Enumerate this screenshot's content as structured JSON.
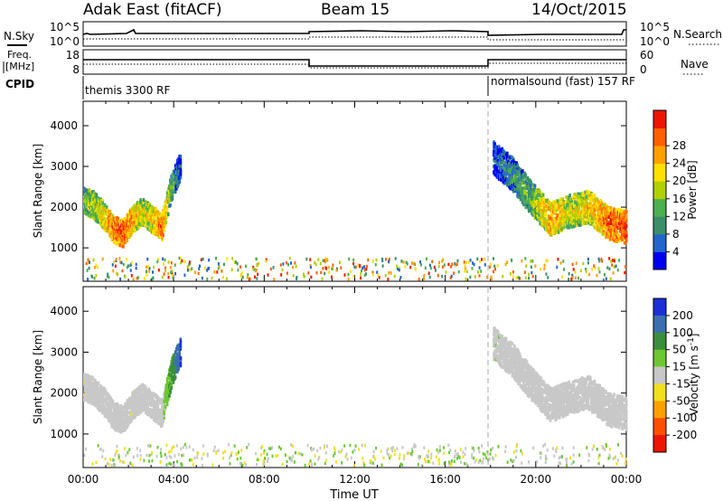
{
  "header": {
    "station": "Adak East (fitACF)",
    "beam": "Beam 15",
    "date": "14/Oct/2015"
  },
  "strips": {
    "nsky": {
      "label": "N.Sky",
      "ticks": [
        "10^5",
        "10^0"
      ]
    },
    "nsearch": {
      "label": "N.Search",
      "ticks": [
        "10^5",
        "10^0"
      ]
    },
    "freq": {
      "label_lines": [
        "Freq.",
        "[MHz]"
      ],
      "ticks": [
        "18",
        "8"
      ]
    },
    "nave": {
      "label": "Nave",
      "ticks": [
        "60",
        "0"
      ]
    },
    "cpid": {
      "label": "CPID",
      "segments": [
        {
          "name": "themis 3300 RF",
          "start_hour": 0,
          "end_hour": 18
        },
        {
          "name": "normalsound (fast) 157 RF",
          "start_hour": 18,
          "end_hour": 24
        }
      ]
    }
  },
  "chart_data": [
    {
      "type": "heatmap",
      "panel": "power",
      "ylabel": "Slant Range [km]",
      "xlabel": "Time UT",
      "x_ticks": [
        "00:00",
        "04:00",
        "08:00",
        "12:00",
        "16:00",
        "20:00",
        "00:00"
      ],
      "xlim_hours": [
        0,
        24
      ],
      "y_ticks": [
        1000,
        2000,
        3000,
        4000
      ],
      "ylim": [
        180,
        4600
      ],
      "colorbar": {
        "label": "Power [dB]",
        "ticks": [
          4,
          8,
          12,
          16,
          20,
          24,
          28
        ],
        "range": [
          0,
          31
        ],
        "colors": [
          "#0000ee",
          "#2266cc",
          "#3a8f6a",
          "#4caf50",
          "#b0d000",
          "#ffe000",
          "#ffa000",
          "#ff6000",
          "#ee1500"
        ]
      },
      "regions": [
        {
          "hours": [
            0.0,
            4.3
          ],
          "center_km": [
            2150,
            2050,
            1800,
            1450,
            1350,
            1700,
            1900,
            1700,
            1500,
            2500,
            3050
          ],
          "width_km": 650,
          "values_db": [
            14,
            16,
            20,
            26,
            28,
            24,
            18,
            20,
            26,
            12,
            6
          ]
        },
        {
          "hours": [
            18.1,
            24.0
          ],
          "center_km": [
            3200,
            2800,
            2200,
            1700,
            1900,
            2000,
            1600,
            1500
          ],
          "width_km": 800,
          "values_db": [
            6,
            10,
            14,
            24,
            18,
            20,
            26,
            28
          ]
        }
      ],
      "dividers_hour": [
        18
      ],
      "values": []
    },
    {
      "type": "heatmap",
      "panel": "velocity",
      "ylabel": "Slant Range [km]",
      "xlabel": "Time UT",
      "x_ticks": [
        "00:00",
        "04:00",
        "08:00",
        "12:00",
        "16:00",
        "20:00",
        "00:00"
      ],
      "xlim_hours": [
        0,
        24
      ],
      "y_ticks": [
        1000,
        2000,
        3000,
        4000
      ],
      "ylim": [
        180,
        4600
      ],
      "colorbar": {
        "label": "Velocity [m s^-1]",
        "ticks": [
          200,
          100,
          50,
          15,
          -15,
          -50,
          -100,
          -200
        ],
        "range": [
          -250,
          250
        ],
        "colors": [
          "#1a2fd6",
          "#3a6fb0",
          "#3a8f3a",
          "#6cc830",
          "#c8c8c8",
          "#f2e020",
          "#ffa000",
          "#ff5000",
          "#ee1500"
        ]
      },
      "regions": [
        {
          "hours": [
            0.0,
            4.3
          ],
          "center_km": [
            2150,
            2050,
            1800,
            1450,
            1350,
            1700,
            1900,
            1700,
            1500,
            2500,
            3050
          ],
          "width_km": 650,
          "values_ms": [
            -10,
            -5,
            0,
            5,
            0,
            -10,
            0,
            5,
            0,
            100,
            200
          ]
        },
        {
          "hours": [
            18.1,
            24.0
          ],
          "center_km": [
            3200,
            2800,
            2200,
            1700,
            1900,
            2000,
            1600,
            1500
          ],
          "width_km": 800,
          "values_ms": [
            10,
            5,
            0,
            -5,
            0,
            5,
            0,
            -5
          ]
        }
      ],
      "dividers_hour": [
        18
      ],
      "values": []
    }
  ],
  "time_axis": {
    "ticks": [
      "00:00",
      "04:00",
      "08:00",
      "12:00",
      "16:00",
      "20:00",
      "00:00"
    ],
    "label": "Time UT"
  }
}
